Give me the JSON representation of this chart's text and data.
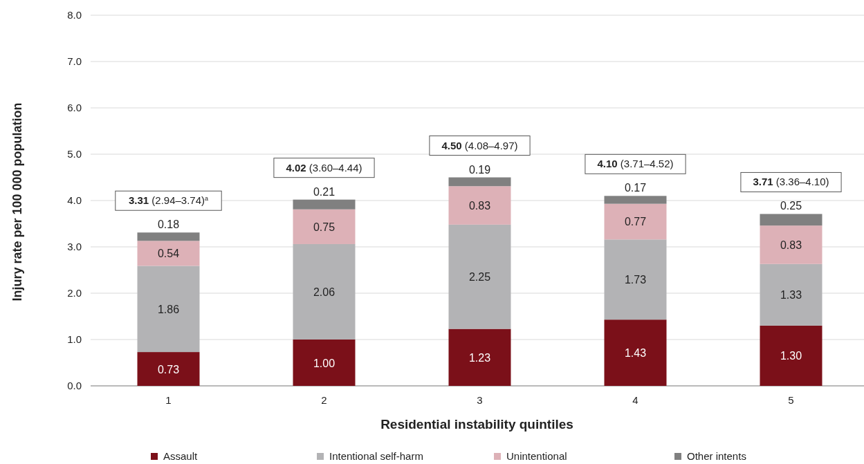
{
  "chart_data": {
    "type": "bar",
    "stacked": true,
    "xlabel": "Residential instability quintiles",
    "ylabel": "Injury rate per 100 000 population",
    "categories": [
      "1",
      "2",
      "3",
      "4",
      "5"
    ],
    "series": [
      {
        "name": "Assault",
        "color": "#7b1019",
        "values": [
          0.73,
          1.0,
          1.23,
          1.43,
          1.3
        ],
        "value_labels": [
          "0.73",
          "1.00",
          "1.23",
          "1.43",
          "1.30"
        ]
      },
      {
        "name": "Intentional self-harm",
        "color": "#b3b3b5",
        "values": [
          1.86,
          2.06,
          2.25,
          1.73,
          1.33
        ],
        "value_labels": [
          "1.86",
          "2.06",
          "2.25",
          "1.73",
          "1.33"
        ]
      },
      {
        "name": "Unintentional",
        "color": "#ddb1b7",
        "values": [
          0.54,
          0.75,
          0.83,
          0.77,
          0.83
        ],
        "value_labels": [
          "0.54",
          "0.75",
          "0.83",
          "0.77",
          "0.83"
        ]
      },
      {
        "name": "Other intents",
        "color": "#808080",
        "values": [
          0.18,
          0.21,
          0.19,
          0.17,
          0.25
        ],
        "value_labels": [
          "0.18",
          "0.21",
          "0.19",
          "0.17",
          "0.25"
        ]
      }
    ],
    "totals": [
      "3.31 (2.94–3.74)$^{a}$",
      "4.02 (3.60–4.44)",
      "4.50 (4.08–4.97)",
      "4.10 (3.71–4.52)",
      "3.71 (3.36–4.10)"
    ],
    "ylim": [
      0,
      8
    ],
    "yticks": [
      {
        "value": 0,
        "label": "0.0"
      },
      {
        "value": 1,
        "label": "1.0"
      },
      {
        "value": 2,
        "label": "2.0"
      },
      {
        "value": 3,
        "label": "3.0"
      },
      {
        "value": 4,
        "label": "4.0"
      },
      {
        "value": 5,
        "label": "5.0"
      },
      {
        "value": 6,
        "label": "6.0"
      },
      {
        "value": 7,
        "label": "7.0"
      },
      {
        "value": 8,
        "label": "8.0"
      }
    ],
    "grid": "y",
    "legend": "bottom"
  }
}
